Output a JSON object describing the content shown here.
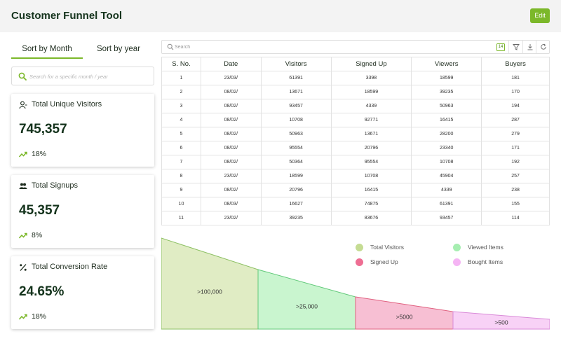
{
  "header": {
    "title": "Customer Funnel Tool",
    "edit_label": "Edit"
  },
  "sort_tabs": {
    "by_month": "Sort by Month",
    "by_year": "Sort by year",
    "active": "by_month"
  },
  "month_search": {
    "placeholder": "Search for a specific month / year"
  },
  "cards": [
    {
      "title": "Total Unique Visitors",
      "value": "745,357",
      "trend": "18%",
      "icon": "user-icon"
    },
    {
      "title": "Total Signups",
      "value": "45,357",
      "trend": "8%",
      "icon": "users-add-icon"
    },
    {
      "title": "Total Conversion Rate",
      "value": "24.65%",
      "trend": "18%",
      "icon": "percent-icon"
    }
  ],
  "table_toolbar": {
    "search_placeholder": "Search",
    "badge": "14"
  },
  "table": {
    "columns": [
      "S. No.",
      "Date",
      "Visitors",
      "Signed Up",
      "Viewers",
      "Buyers"
    ],
    "rows": [
      [
        "1",
        "23/03/",
        "61391",
        "3398",
        "18599",
        "181"
      ],
      [
        "2",
        "08/02/",
        "13671",
        "18599",
        "39235",
        "170"
      ],
      [
        "3",
        "08/02/",
        "93457",
        "4339",
        "50963",
        "194"
      ],
      [
        "4",
        "08/02/",
        "10708",
        "92771",
        "16415",
        "287"
      ],
      [
        "5",
        "08/02/",
        "50963",
        "13671",
        "28200",
        "279"
      ],
      [
        "6",
        "08/02/",
        "95554",
        "20796",
        "23340",
        "171"
      ],
      [
        "7",
        "08/02/",
        "50364",
        "95554",
        "10708",
        "192"
      ],
      [
        "8",
        "23/02/",
        "18599",
        "10708",
        "45904",
        "257"
      ],
      [
        "9",
        "08/02/",
        "20796",
        "16415",
        "4339",
        "238"
      ],
      [
        "10",
        "08/03/",
        "16627",
        "74875",
        "61391",
        "155"
      ],
      [
        "11",
        "23/02/",
        "39235",
        "83676",
        "93457",
        "114"
      ]
    ]
  },
  "funnel": {
    "segments": [
      {
        "label": ">100,000",
        "color": "#e0ecc4",
        "stroke": "#8cc063"
      },
      {
        "label": ">25,000",
        "color": "#c9f5cf",
        "stroke": "#62c97a"
      },
      {
        "label": ">5000",
        "color": "#f7bfd3",
        "stroke": "#e0607f"
      },
      {
        "label": ">500",
        "color": "#f8d2f6",
        "stroke": "#d98ad8"
      }
    ],
    "legend": [
      {
        "name": "Total Visitors",
        "color": "#c5dc93"
      },
      {
        "name": "Viewed Items",
        "color": "#a6eeb1"
      },
      {
        "name": "Signed Up",
        "color": "#ee6e93"
      },
      {
        "name": "Bought Items",
        "color": "#f5b4f4"
      }
    ]
  }
}
